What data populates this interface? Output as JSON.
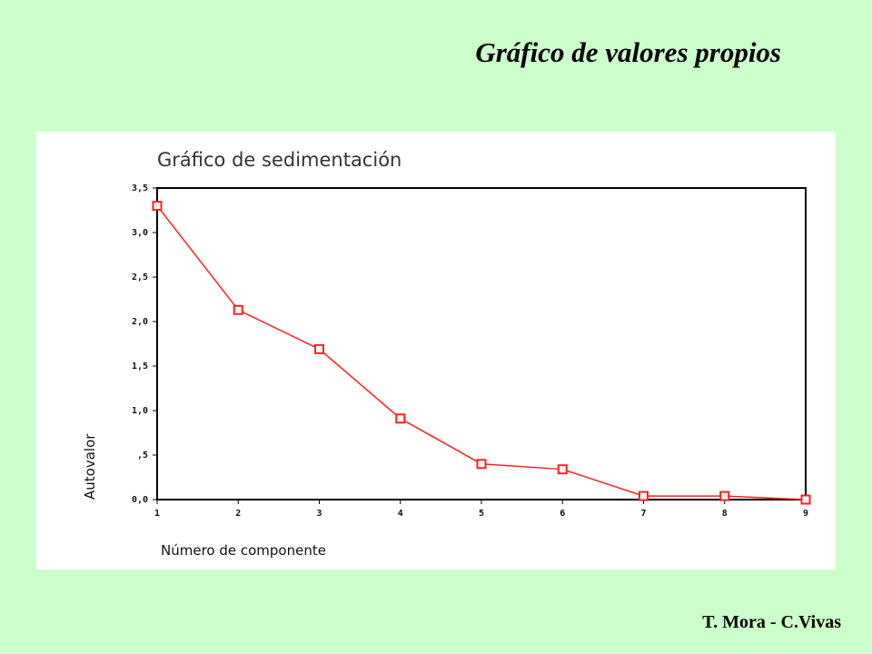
{
  "slide": {
    "title": "Gráfico de valores propios",
    "credits": "T. Mora - C.Vivas"
  },
  "colors": {
    "background": "#ccffcc",
    "series": "#ff2020",
    "frame": "#000000"
  },
  "chart_data": {
    "type": "line",
    "title": "Gráfico de sedimentación",
    "xlabel": "Número de componente",
    "ylabel": "Autovalor",
    "x": [
      1,
      2,
      3,
      4,
      5,
      6,
      7,
      8,
      9
    ],
    "series": [
      {
        "values": [
          3.3,
          2.13,
          1.69,
          0.91,
          0.4,
          0.34,
          0.04,
          0.04,
          0.0
        ]
      }
    ],
    "ylim": [
      0,
      3.5
    ],
    "xlim": [
      1,
      9
    ],
    "y_ticks": [
      {
        "value": 3.5,
        "label": "3,5"
      },
      {
        "value": 3.0,
        "label": "3,0"
      },
      {
        "value": 2.5,
        "label": "2,5"
      },
      {
        "value": 2.0,
        "label": "2,0"
      },
      {
        "value": 1.5,
        "label": "1,5"
      },
      {
        "value": 1.0,
        "label": "1,0"
      },
      {
        "value": 0.5,
        "label": ",5"
      },
      {
        "value": 0.0,
        "label": "0,0"
      }
    ],
    "x_ticks": [
      "1",
      "2",
      "3",
      "4",
      "5",
      "6",
      "7",
      "8",
      "9"
    ],
    "marker": "square",
    "grid": false,
    "legend": "none"
  }
}
